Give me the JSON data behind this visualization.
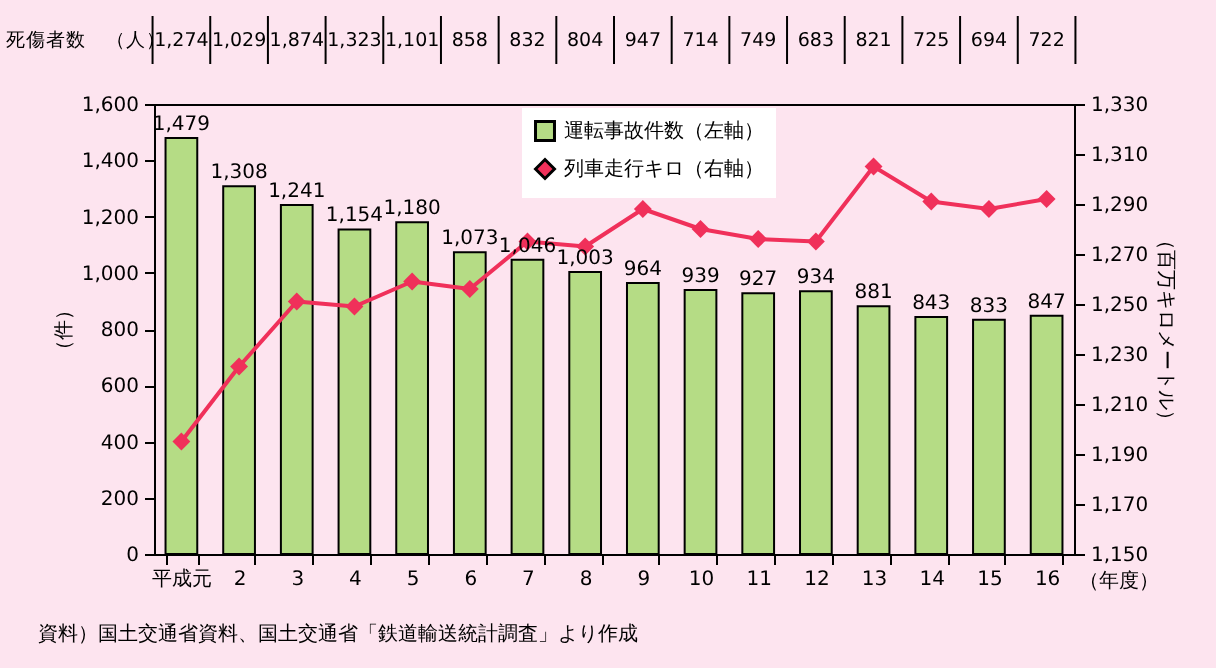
{
  "chart_data": {
    "type": "bar",
    "categories": [
      "平成元",
      "2",
      "3",
      "4",
      "5",
      "6",
      "7",
      "8",
      "9",
      "10",
      "11",
      "12",
      "13",
      "14",
      "15",
      "16"
    ],
    "series": [
      {
        "name": "運転事故件数（左軸）",
        "type": "bar",
        "color": "#b5dc85",
        "values": [
          1479,
          1308,
          1241,
          1154,
          1180,
          1073,
          1046,
          1003,
          964,
          939,
          927,
          934,
          881,
          843,
          833,
          847
        ],
        "value_labels": [
          "1,479",
          "1,308",
          "1,241",
          "1,154",
          "1,180",
          "1,073",
          "1,046",
          "1,003",
          "964",
          "939",
          "927",
          "934",
          "881",
          "843",
          "833",
          "847"
        ]
      },
      {
        "name": "列車走行キロ（右軸）",
        "type": "line",
        "axis": "y2",
        "color": "#f0305a",
        "marker": "diamond",
        "values": [
          1195,
          1225,
          1251,
          1249,
          1259,
          1256,
          1275,
          1273,
          1288,
          1280,
          1276,
          1275,
          1305,
          1291,
          1288,
          1292
        ]
      }
    ],
    "xlabel": "（年度）",
    "ylabel": "（件）",
    "y2label": "（百万キロメートル）",
    "ylim": [
      0,
      1600
    ],
    "yticks": [
      0,
      200,
      400,
      600,
      800,
      {
        "value": 1000,
        "label": "1,000"
      },
      {
        "value": 1200,
        "label": "1,200"
      },
      {
        "value": 1400,
        "label": "1,400"
      },
      {
        "value": 1600,
        "label": "1,600"
      }
    ],
    "y2lim": [
      1150,
      1330
    ],
    "y2ticks": [
      {
        "value": 1150,
        "label": "1,150"
      },
      {
        "value": 1170,
        "label": "1,170"
      },
      {
        "value": 1190,
        "label": "1,190"
      },
      {
        "value": 1210,
        "label": "1,210"
      },
      {
        "value": 1230,
        "label": "1,230"
      },
      {
        "value": 1250,
        "label": "1,250"
      },
      {
        "value": 1270,
        "label": "1,270"
      },
      {
        "value": 1290,
        "label": "1,290"
      },
      {
        "value": 1310,
        "label": "1,310"
      },
      {
        "value": 1330,
        "label": "1,330"
      }
    ],
    "grid": false,
    "legend": "top",
    "annotations": [
      "死傷者数　（人）",
      "1,274",
      "1,029",
      "1,874",
      "1,323",
      "1,101",
      "858",
      "832",
      "804",
      "947",
      "714",
      "749",
      "683",
      "821",
      "725",
      "694",
      "722",
      "資料）国土交通省資料、国土交通省「鉄道輸送統計調査」より作成"
    ]
  }
}
